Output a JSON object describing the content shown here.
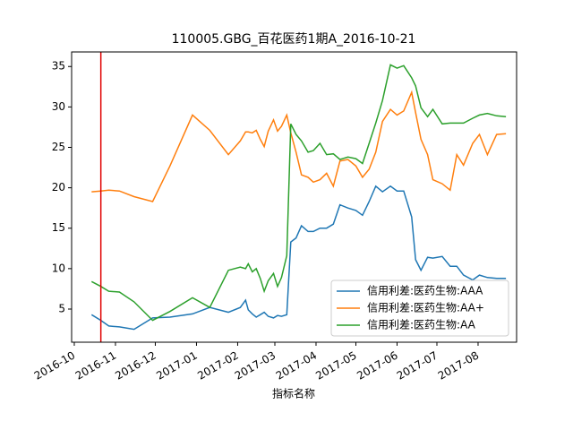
{
  "chart_data": {
    "type": "line",
    "title": "110005.GBG_百花医药1期A_2016-10-21",
    "xlabel": "指标名称",
    "x": [
      13,
      20,
      26,
      34,
      45,
      59,
      72,
      89,
      102,
      116,
      125,
      129,
      131,
      134,
      137,
      140,
      143,
      146,
      150,
      153,
      156,
      160,
      163,
      167,
      171,
      176,
      180,
      185,
      190,
      195,
      200,
      206,
      212,
      217,
      222,
      227,
      232,
      238,
      243,
      248,
      254,
      257,
      261,
      266,
      270,
      277,
      283,
      288,
      293,
      300,
      305,
      311,
      318,
      325
    ],
    "series": [
      {
        "name": "信用利差:医药生物:AAA",
        "color": "#1f77b4",
        "values": [
          4.3,
          3.6,
          2.9,
          2.8,
          2.5,
          3.9,
          4.0,
          4.4,
          5.2,
          4.6,
          5.2,
          6.1,
          4.9,
          4.4,
          4.0,
          4.3,
          4.6,
          4.1,
          3.9,
          4.2,
          4.1,
          4.3,
          13.3,
          13.8,
          15.3,
          14.6,
          14.6,
          15.0,
          15.0,
          15.5,
          17.9,
          17.5,
          17.2,
          16.6,
          18.3,
          20.2,
          19.5,
          20.2,
          19.6,
          19.6,
          16.4,
          11.1,
          9.8,
          11.4,
          11.3,
          11.5,
          10.3,
          10.3,
          9.2,
          8.6,
          9.2,
          8.9,
          8.8,
          8.8
        ]
      },
      {
        "name": "信用利差:医药生物:AA+",
        "color": "#ff7f0e",
        "values": [
          19.5,
          19.6,
          19.7,
          19.6,
          18.9,
          18.3,
          22.7,
          29.0,
          27.1,
          24.1,
          25.8,
          26.9,
          26.9,
          26.8,
          27.1,
          26.0,
          25.1,
          27.0,
          28.4,
          27.0,
          27.6,
          29.0,
          26.8,
          24.4,
          21.6,
          21.3,
          20.7,
          21.0,
          21.8,
          20.2,
          23.3,
          23.5,
          22.7,
          21.3,
          22.3,
          24.4,
          28.2,
          29.7,
          29.0,
          29.5,
          31.8,
          29.3,
          26.0,
          24.1,
          21.0,
          20.5,
          19.7,
          24.1,
          22.8,
          25.5,
          26.6,
          24.1,
          26.6,
          26.7
        ]
      },
      {
        "name": "信用利差:医药生物:AA",
        "color": "#2ca02c",
        "values": [
          8.4,
          7.8,
          7.2,
          7.1,
          5.9,
          3.6,
          4.7,
          6.4,
          5.2,
          9.8,
          10.2,
          10.0,
          10.6,
          9.6,
          10.0,
          8.8,
          7.2,
          8.5,
          9.4,
          7.8,
          8.9,
          11.6,
          27.9,
          26.6,
          25.8,
          24.4,
          24.6,
          25.5,
          24.1,
          24.2,
          23.5,
          23.8,
          23.6,
          23.0,
          25.5,
          28.0,
          30.8,
          35.2,
          34.8,
          35.1,
          33.6,
          32.6,
          29.9,
          28.8,
          29.7,
          27.9,
          28.0,
          28.0,
          28.0,
          28.6,
          29.0,
          29.2,
          28.9,
          28.8
        ]
      }
    ],
    "vline": {
      "x": 20,
      "color": "#e00000"
    },
    "xlim": [
      -2,
      333
    ],
    "xticks": [
      {
        "value": 0,
        "label": "2016-10"
      },
      {
        "value": 31,
        "label": "2016-11"
      },
      {
        "value": 61,
        "label": "2016-12"
      },
      {
        "value": 92,
        "label": "2017-01"
      },
      {
        "value": 123,
        "label": "2017-02"
      },
      {
        "value": 151,
        "label": "2017-03"
      },
      {
        "value": 182,
        "label": "2017-04"
      },
      {
        "value": 212,
        "label": "2017-05"
      },
      {
        "value": 243,
        "label": "2017-06"
      },
      {
        "value": 273,
        "label": "2017-07"
      },
      {
        "value": 304,
        "label": "2017-08"
      }
    ],
    "ylim": [
      0.9,
      36.8
    ],
    "yticks": [
      5,
      10,
      15,
      20,
      25,
      30,
      35
    ],
    "legend": "lower right"
  }
}
